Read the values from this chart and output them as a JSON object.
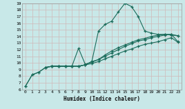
{
  "title": "",
  "xlabel": "Humidex (Indice chaleur)",
  "xlim": [
    -0.5,
    23.5
  ],
  "ylim": [
    6,
    19
  ],
  "xticks": [
    0,
    1,
    2,
    3,
    4,
    5,
    6,
    7,
    8,
    9,
    10,
    11,
    12,
    13,
    14,
    15,
    16,
    17,
    18,
    19,
    20,
    21,
    22,
    23
  ],
  "yticks": [
    6,
    7,
    8,
    9,
    10,
    11,
    12,
    13,
    14,
    15,
    16,
    17,
    18,
    19
  ],
  "bg_color": "#c8e8e8",
  "line_color": "#1a6b5a",
  "grid_color": "#b0d0d0",
  "lines": [
    {
      "x": [
        0,
        1,
        2,
        3,
        4,
        5,
        6,
        7,
        8,
        9,
        10,
        11,
        12,
        13,
        14,
        15,
        16,
        17,
        18,
        19,
        20,
        21,
        22,
        23
      ],
      "y": [
        6.5,
        8.2,
        8.6,
        9.3,
        9.5,
        9.5,
        9.5,
        9.5,
        9.5,
        9.7,
        10.2,
        14.8,
        15.8,
        16.3,
        17.7,
        19.0,
        18.5,
        17.0,
        14.8,
        14.5,
        14.3,
        14.3,
        14.2,
        14.1
      ]
    },
    {
      "x": [
        0,
        1,
        2,
        3,
        4,
        5,
        6,
        7,
        8,
        9,
        10,
        11,
        12,
        13,
        14,
        15,
        16,
        17,
        18,
        19,
        20,
        21,
        22,
        23
      ],
      "y": [
        6.5,
        8.2,
        8.6,
        9.3,
        9.5,
        9.5,
        9.5,
        9.5,
        9.5,
        9.7,
        10.2,
        10.5,
        11.2,
        11.8,
        12.3,
        12.7,
        13.1,
        13.5,
        13.7,
        14.0,
        14.2,
        14.3,
        14.3,
        14.1
      ]
    },
    {
      "x": [
        3,
        4,
        5,
        6,
        7,
        8,
        9,
        10,
        11,
        12,
        13,
        14,
        15,
        16,
        17,
        18,
        19,
        20,
        21,
        22,
        23
      ],
      "y": [
        9.3,
        9.5,
        9.5,
        9.5,
        9.5,
        12.2,
        9.8,
        10.1,
        10.5,
        11.0,
        11.5,
        12.0,
        12.5,
        12.9,
        13.3,
        13.5,
        13.8,
        14.0,
        14.2,
        14.3,
        13.2
      ]
    },
    {
      "x": [
        3,
        4,
        5,
        6,
        7,
        8,
        9,
        10,
        11,
        12,
        13,
        14,
        15,
        16,
        17,
        18,
        19,
        20,
        21,
        22,
        23
      ],
      "y": [
        9.3,
        9.5,
        9.5,
        9.5,
        9.5,
        9.5,
        9.7,
        9.9,
        10.2,
        10.6,
        11.0,
        11.4,
        11.8,
        12.1,
        12.5,
        12.8,
        13.0,
        13.2,
        13.5,
        13.8,
        13.1
      ]
    }
  ]
}
